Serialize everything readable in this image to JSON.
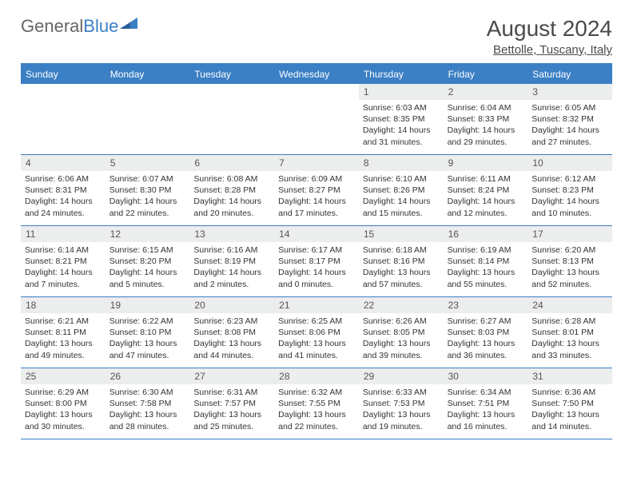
{
  "logo": {
    "text1": "General",
    "text2": "Blue"
  },
  "title": "August 2024",
  "location": "Bettolle, Tuscany, Italy",
  "header_bg": "#3b7fc4",
  "daynum_bg": "#eceded",
  "days_of_week": [
    "Sunday",
    "Monday",
    "Tuesday",
    "Wednesday",
    "Thursday",
    "Friday",
    "Saturday"
  ],
  "weeks": [
    [
      {
        "n": "",
        "sr": "",
        "ss": "",
        "dl": ""
      },
      {
        "n": "",
        "sr": "",
        "ss": "",
        "dl": ""
      },
      {
        "n": "",
        "sr": "",
        "ss": "",
        "dl": ""
      },
      {
        "n": "",
        "sr": "",
        "ss": "",
        "dl": ""
      },
      {
        "n": "1",
        "sr": "Sunrise: 6:03 AM",
        "ss": "Sunset: 8:35 PM",
        "dl": "Daylight: 14 hours and 31 minutes."
      },
      {
        "n": "2",
        "sr": "Sunrise: 6:04 AM",
        "ss": "Sunset: 8:33 PM",
        "dl": "Daylight: 14 hours and 29 minutes."
      },
      {
        "n": "3",
        "sr": "Sunrise: 6:05 AM",
        "ss": "Sunset: 8:32 PM",
        "dl": "Daylight: 14 hours and 27 minutes."
      }
    ],
    [
      {
        "n": "4",
        "sr": "Sunrise: 6:06 AM",
        "ss": "Sunset: 8:31 PM",
        "dl": "Daylight: 14 hours and 24 minutes."
      },
      {
        "n": "5",
        "sr": "Sunrise: 6:07 AM",
        "ss": "Sunset: 8:30 PM",
        "dl": "Daylight: 14 hours and 22 minutes."
      },
      {
        "n": "6",
        "sr": "Sunrise: 6:08 AM",
        "ss": "Sunset: 8:28 PM",
        "dl": "Daylight: 14 hours and 20 minutes."
      },
      {
        "n": "7",
        "sr": "Sunrise: 6:09 AM",
        "ss": "Sunset: 8:27 PM",
        "dl": "Daylight: 14 hours and 17 minutes."
      },
      {
        "n": "8",
        "sr": "Sunrise: 6:10 AM",
        "ss": "Sunset: 8:26 PM",
        "dl": "Daylight: 14 hours and 15 minutes."
      },
      {
        "n": "9",
        "sr": "Sunrise: 6:11 AM",
        "ss": "Sunset: 8:24 PM",
        "dl": "Daylight: 14 hours and 12 minutes."
      },
      {
        "n": "10",
        "sr": "Sunrise: 6:12 AM",
        "ss": "Sunset: 8:23 PM",
        "dl": "Daylight: 14 hours and 10 minutes."
      }
    ],
    [
      {
        "n": "11",
        "sr": "Sunrise: 6:14 AM",
        "ss": "Sunset: 8:21 PM",
        "dl": "Daylight: 14 hours and 7 minutes."
      },
      {
        "n": "12",
        "sr": "Sunrise: 6:15 AM",
        "ss": "Sunset: 8:20 PM",
        "dl": "Daylight: 14 hours and 5 minutes."
      },
      {
        "n": "13",
        "sr": "Sunrise: 6:16 AM",
        "ss": "Sunset: 8:19 PM",
        "dl": "Daylight: 14 hours and 2 minutes."
      },
      {
        "n": "14",
        "sr": "Sunrise: 6:17 AM",
        "ss": "Sunset: 8:17 PM",
        "dl": "Daylight: 14 hours and 0 minutes."
      },
      {
        "n": "15",
        "sr": "Sunrise: 6:18 AM",
        "ss": "Sunset: 8:16 PM",
        "dl": "Daylight: 13 hours and 57 minutes."
      },
      {
        "n": "16",
        "sr": "Sunrise: 6:19 AM",
        "ss": "Sunset: 8:14 PM",
        "dl": "Daylight: 13 hours and 55 minutes."
      },
      {
        "n": "17",
        "sr": "Sunrise: 6:20 AM",
        "ss": "Sunset: 8:13 PM",
        "dl": "Daylight: 13 hours and 52 minutes."
      }
    ],
    [
      {
        "n": "18",
        "sr": "Sunrise: 6:21 AM",
        "ss": "Sunset: 8:11 PM",
        "dl": "Daylight: 13 hours and 49 minutes."
      },
      {
        "n": "19",
        "sr": "Sunrise: 6:22 AM",
        "ss": "Sunset: 8:10 PM",
        "dl": "Daylight: 13 hours and 47 minutes."
      },
      {
        "n": "20",
        "sr": "Sunrise: 6:23 AM",
        "ss": "Sunset: 8:08 PM",
        "dl": "Daylight: 13 hours and 44 minutes."
      },
      {
        "n": "21",
        "sr": "Sunrise: 6:25 AM",
        "ss": "Sunset: 8:06 PM",
        "dl": "Daylight: 13 hours and 41 minutes."
      },
      {
        "n": "22",
        "sr": "Sunrise: 6:26 AM",
        "ss": "Sunset: 8:05 PM",
        "dl": "Daylight: 13 hours and 39 minutes."
      },
      {
        "n": "23",
        "sr": "Sunrise: 6:27 AM",
        "ss": "Sunset: 8:03 PM",
        "dl": "Daylight: 13 hours and 36 minutes."
      },
      {
        "n": "24",
        "sr": "Sunrise: 6:28 AM",
        "ss": "Sunset: 8:01 PM",
        "dl": "Daylight: 13 hours and 33 minutes."
      }
    ],
    [
      {
        "n": "25",
        "sr": "Sunrise: 6:29 AM",
        "ss": "Sunset: 8:00 PM",
        "dl": "Daylight: 13 hours and 30 minutes."
      },
      {
        "n": "26",
        "sr": "Sunrise: 6:30 AM",
        "ss": "Sunset: 7:58 PM",
        "dl": "Daylight: 13 hours and 28 minutes."
      },
      {
        "n": "27",
        "sr": "Sunrise: 6:31 AM",
        "ss": "Sunset: 7:57 PM",
        "dl": "Daylight: 13 hours and 25 minutes."
      },
      {
        "n": "28",
        "sr": "Sunrise: 6:32 AM",
        "ss": "Sunset: 7:55 PM",
        "dl": "Daylight: 13 hours and 22 minutes."
      },
      {
        "n": "29",
        "sr": "Sunrise: 6:33 AM",
        "ss": "Sunset: 7:53 PM",
        "dl": "Daylight: 13 hours and 19 minutes."
      },
      {
        "n": "30",
        "sr": "Sunrise: 6:34 AM",
        "ss": "Sunset: 7:51 PM",
        "dl": "Daylight: 13 hours and 16 minutes."
      },
      {
        "n": "31",
        "sr": "Sunrise: 6:36 AM",
        "ss": "Sunset: 7:50 PM",
        "dl": "Daylight: 13 hours and 14 minutes."
      }
    ]
  ]
}
